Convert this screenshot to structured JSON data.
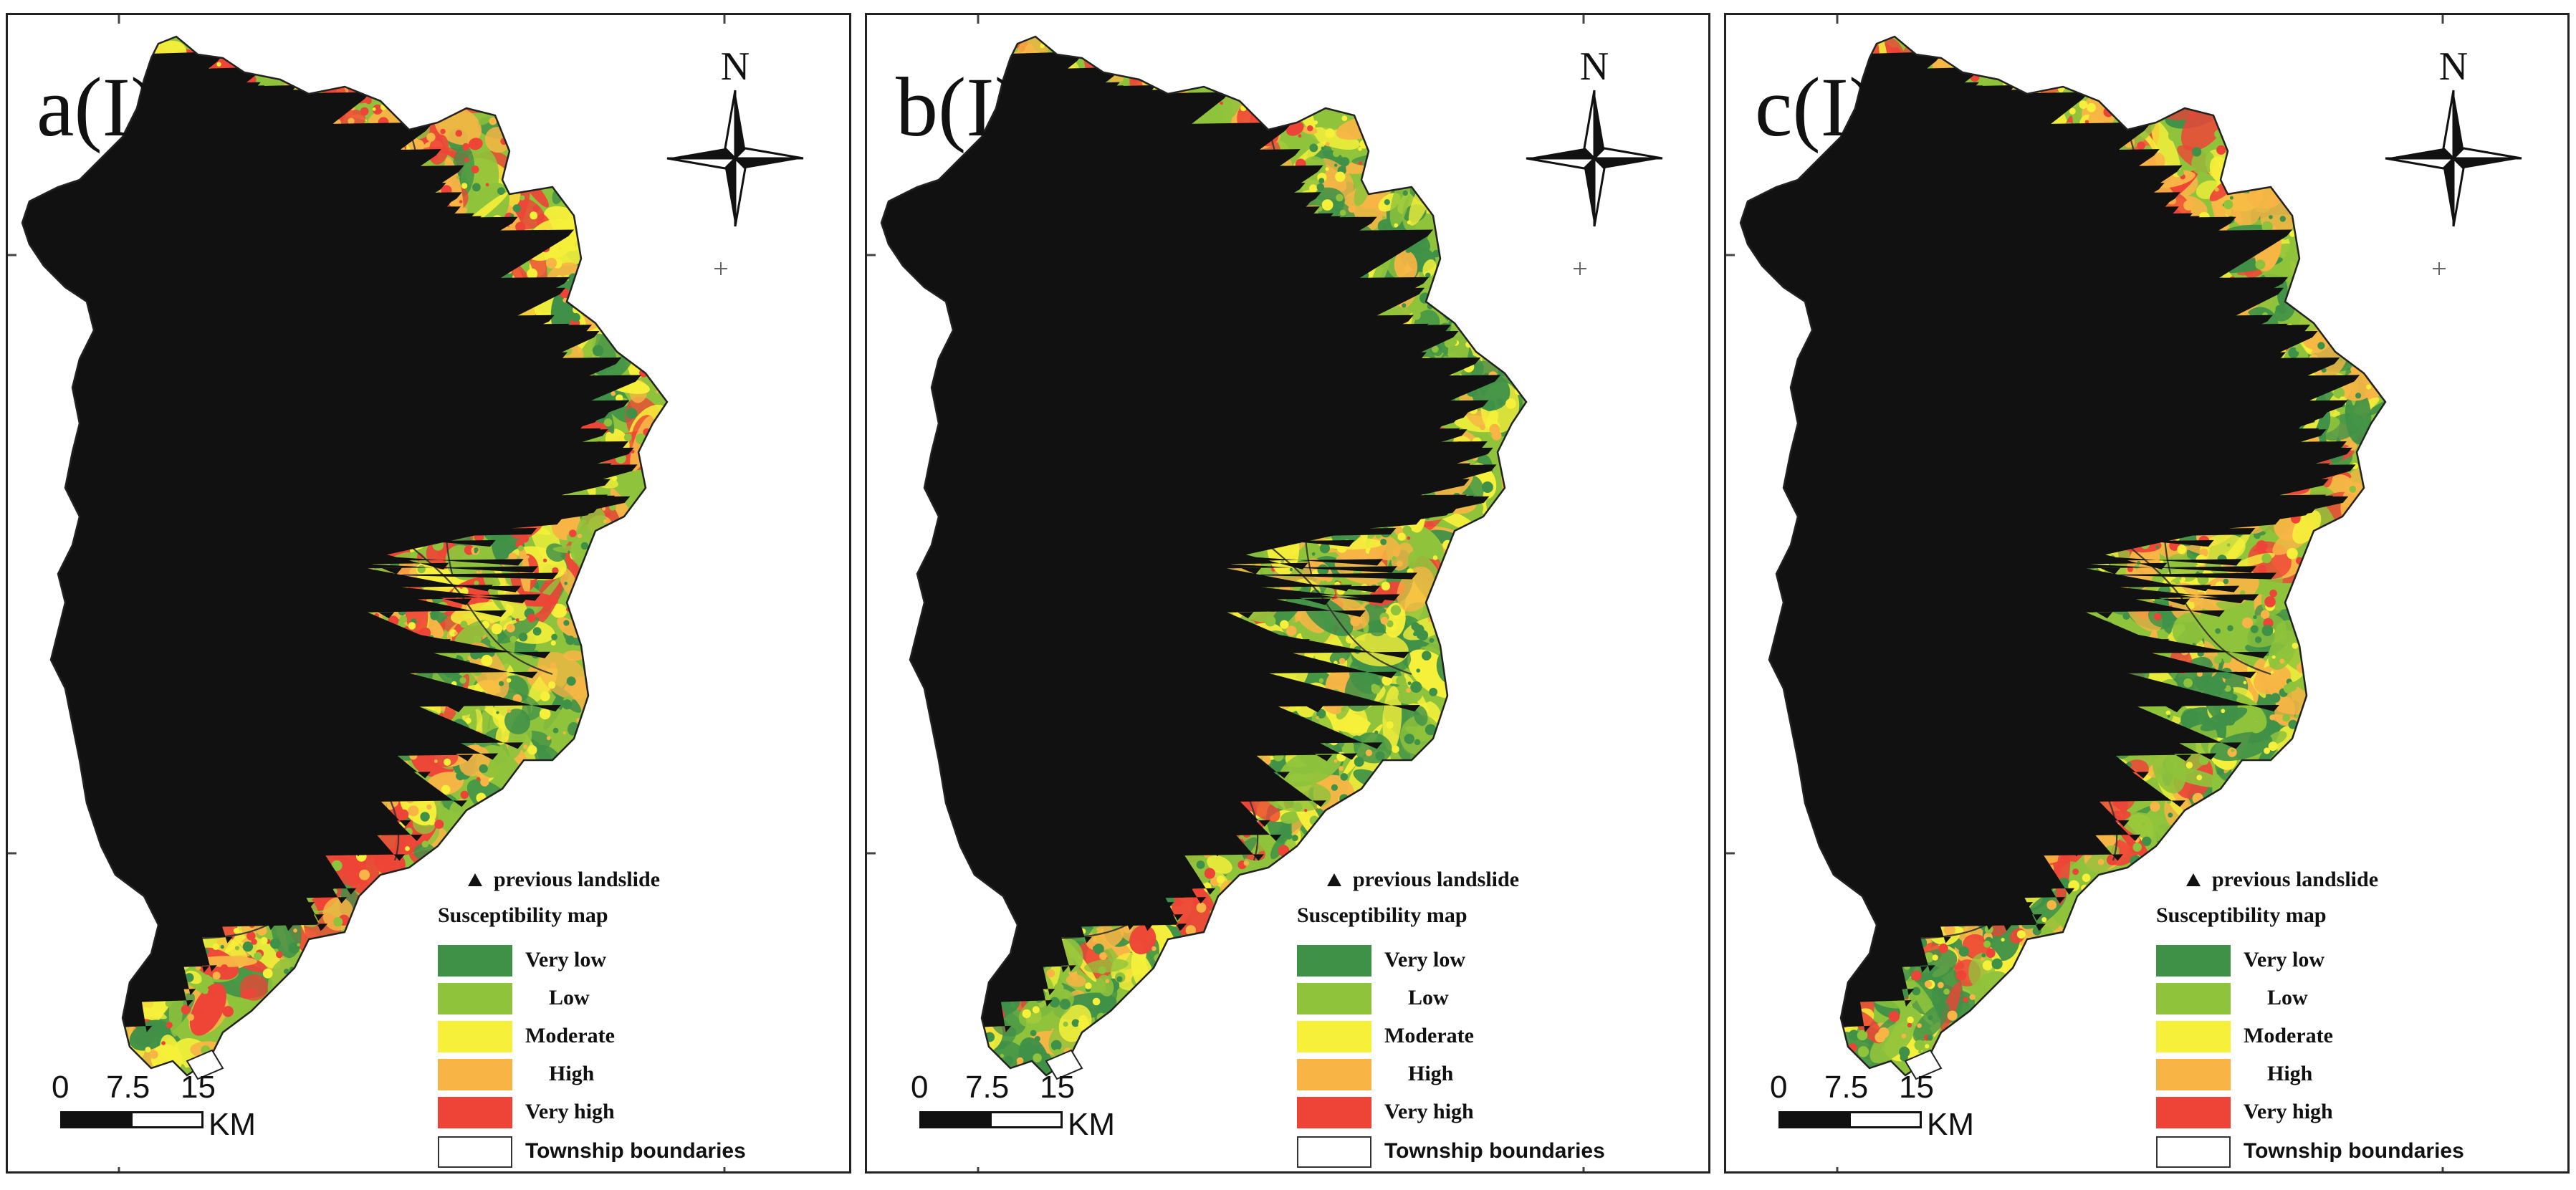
{
  "figure": {
    "panels": [
      {
        "id": "a",
        "label": "a(I)"
      },
      {
        "id": "b",
        "label": "b(I)"
      },
      {
        "id": "c",
        "label": "c(I)"
      }
    ],
    "north_label": "N",
    "scale": {
      "zero": "0",
      "mid": "7.5",
      "max": "15",
      "unit": "KM"
    },
    "legend": {
      "landslide_label": "previous landslide",
      "title": "Susceptibility map",
      "classes": [
        {
          "label": "Very low",
          "color": "#3f9148"
        },
        {
          "label": "Low",
          "color": "#8fc33b"
        },
        {
          "label": "Moderate",
          "color": "#f6f03a"
        },
        {
          "label": "High",
          "color": "#f8b545"
        },
        {
          "label": "Very high",
          "color": "#ee4437"
        }
      ],
      "boundary_label": "Township boundaries"
    },
    "colors": {
      "very_low": "#3f9148",
      "low": "#8fc33b",
      "moderate": "#f6f03a",
      "high": "#f8b545",
      "very_high": "#ee4437",
      "landslide": "#111111",
      "boundary": "#333333"
    }
  }
}
